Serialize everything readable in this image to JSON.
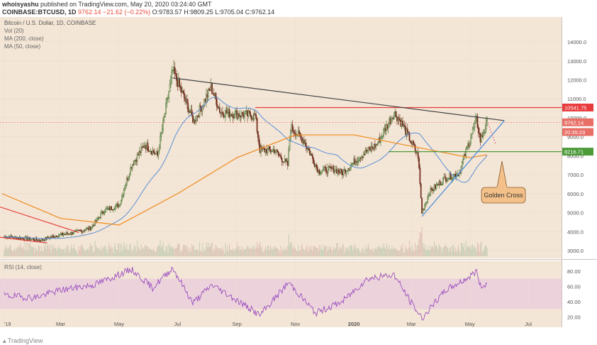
{
  "header": {
    "line1_user": "whoisyashu",
    "line1_rest": " published on TradingView.com, May 20, 2020 03:24:40 GMT",
    "line2_symbol": "COINBASE:BTCUSD, 1D",
    "line2_last": "9762.14",
    "line2_change": "−21.62 (−0.22%)",
    "line2_ohlc": "O:9783.57 H:9809.25 L:9705.04 C:9762.14"
  },
  "legend": {
    "title": "Bitcoin / U.S. Dollar, 1D, COINBASE",
    "vol": "Vol (20)",
    "ma200": "MA (200, close)",
    "ma50": "MA (50, close)"
  },
  "rsi_label": "RSI (14, close)",
  "annotation": "Golden Cross",
  "footer": {
    "brand": "TradingView"
  },
  "colors": {
    "price_bg": "#f4e6d6",
    "rsi_band": "#ecd3db",
    "up": "#3a6b26",
    "down": "#6e2a1c",
    "ma200": "#f0902a",
    "ma50": "#5a8fd6",
    "red_line": "#e83c3c",
    "green_line": "#4c9a3a",
    "trend_line": "#444444",
    "blue_support": "#4a8fe0",
    "rsi_line": "#9b4fc0",
    "callout": "#f3c089"
  },
  "chart_data": {
    "type": "candlestick",
    "title": "Bitcoin / U.S. Dollar, 1D, COINBASE",
    "price_axis": {
      "ticks": [
        3000,
        4000,
        5000,
        6000,
        7000,
        8000,
        9000,
        10000,
        11000,
        12000,
        13000,
        14000
      ],
      "range": [
        2700,
        15200
      ]
    },
    "x_axis_labels": [
      "'19",
      "Mar",
      "May",
      "Jul",
      "Sep",
      "Nov",
      "2020",
      "Mar",
      "May",
      "Jul"
    ],
    "price_labels": [
      {
        "text": "10541.75",
        "value": 10541.75,
        "color": "#e83c3c"
      },
      {
        "text": "9762.14",
        "value": 9762.14,
        "color": "#e86f66"
      },
      {
        "text": "20:35:23",
        "value": 9250,
        "color": "#e86f66"
      },
      {
        "text": "8216.71",
        "value": 8216.71,
        "color": "#4c9a3a"
      }
    ],
    "horizontal_levels": [
      {
        "name": "resistance",
        "value": 10541.75
      },
      {
        "name": "support",
        "value": 8216.71
      }
    ],
    "rsi_axis": {
      "ticks": [
        20,
        40,
        60,
        80
      ],
      "band": [
        30,
        70
      ]
    },
    "close_path": [
      [
        "2019-01-01",
        3750
      ],
      [
        "2019-01-20",
        3650
      ],
      [
        "2019-02-08",
        3550
      ],
      [
        "2019-02-25",
        3800
      ],
      [
        "2019-03-15",
        3950
      ],
      [
        "2019-04-02",
        4200
      ],
      [
        "2019-04-15",
        5100
      ],
      [
        "2019-05-01",
        5400
      ],
      [
        "2019-05-14",
        7500
      ],
      [
        "2019-05-28",
        8600
      ],
      [
        "2019-06-10",
        8000
      ],
      [
        "2019-06-26",
        12500
      ],
      [
        "2019-07-05",
        11400
      ],
      [
        "2019-07-18",
        9800
      ],
      [
        "2019-08-05",
        11600
      ],
      [
        "2019-08-15",
        10300
      ],
      [
        "2019-09-01",
        10200
      ],
      [
        "2019-09-20",
        10100
      ],
      [
        "2019-09-25",
        8300
      ],
      [
        "2019-10-10",
        8300
      ],
      [
        "2019-10-24",
        7500
      ],
      [
        "2019-10-27",
        9500
      ],
      [
        "2019-11-10",
        8800
      ],
      [
        "2019-11-25",
        7200
      ],
      [
        "2019-12-10",
        7300
      ],
      [
        "2019-12-20",
        7100
      ],
      [
        "2020-01-08",
        8000
      ],
      [
        "2020-01-25",
        8600
      ],
      [
        "2020-02-12",
        10300
      ],
      [
        "2020-02-20",
        9700
      ],
      [
        "2020-03-08",
        8000
      ],
      [
        "2020-03-12",
        5000
      ],
      [
        "2020-03-20",
        6100
      ],
      [
        "2020-04-05",
        6800
      ],
      [
        "2020-04-20",
        7100
      ],
      [
        "2020-04-30",
        8700
      ],
      [
        "2020-05-08",
        9900
      ],
      [
        "2020-05-12",
        8800
      ],
      [
        "2020-05-19",
        9762
      ]
    ],
    "rsi_path": [
      [
        "2019-01-01",
        48
      ],
      [
        "2019-02-01",
        45
      ],
      [
        "2019-03-01",
        55
      ],
      [
        "2019-04-05",
        62
      ],
      [
        "2019-05-14",
        82
      ],
      [
        "2019-06-05",
        58
      ],
      [
        "2019-06-26",
        84
      ],
      [
        "2019-07-17",
        38
      ],
      [
        "2019-08-06",
        62
      ],
      [
        "2019-08-28",
        45
      ],
      [
        "2019-09-25",
        22
      ],
      [
        "2019-10-25",
        65
      ],
      [
        "2019-11-22",
        25
      ],
      [
        "2019-12-20",
        40
      ],
      [
        "2020-01-15",
        70
      ],
      [
        "2020-02-12",
        75
      ],
      [
        "2020-02-28",
        42
      ],
      [
        "2020-03-12",
        18
      ],
      [
        "2020-04-06",
        55
      ],
      [
        "2020-04-30",
        72
      ],
      [
        "2020-05-08",
        80
      ],
      [
        "2020-05-12",
        60
      ],
      [
        "2020-05-19",
        63
      ]
    ]
  }
}
